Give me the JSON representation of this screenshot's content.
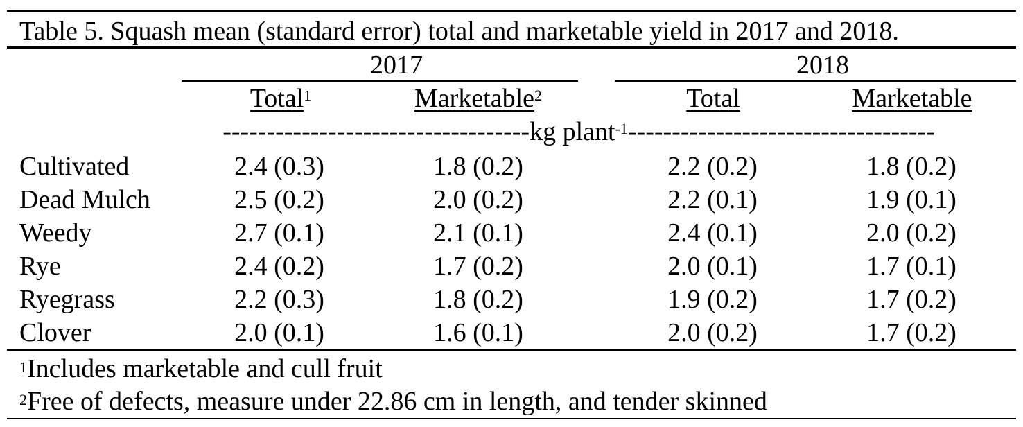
{
  "title": "Table 5. Squash mean (standard error) total and marketable yield in 2017 and 2018.",
  "years": [
    "2017",
    "2018"
  ],
  "columns": [
    {
      "label": "Total",
      "sup": "1"
    },
    {
      "label": "Marketable",
      "sup": "2"
    },
    {
      "label": "Total",
      "sup": ""
    },
    {
      "label": "Marketable",
      "sup": ""
    }
  ],
  "unit": {
    "left_dashes": "-----------------------------------",
    "label": "kg plant",
    "sup": "-1",
    "right_dashes": "-----------------------------------"
  },
  "rows": [
    {
      "name": "Cultivated",
      "values": [
        "2.4 (0.3)",
        "1.8 (0.2)",
        "2.2 (0.2)",
        "1.8 (0.2)"
      ]
    },
    {
      "name": "Dead Mulch",
      "values": [
        "2.5 (0.2)",
        "2.0 (0.2)",
        "2.2 (0.1)",
        "1.9 (0.1)"
      ]
    },
    {
      "name": "Weedy",
      "values": [
        "2.7 (0.1)",
        "2.1 (0.1)",
        "2.4 (0.1)",
        "2.0 (0.2)"
      ]
    },
    {
      "name": "Rye",
      "values": [
        "2.4 (0.2)",
        "1.7 (0.2)",
        "2.0 (0.1)",
        "1.7 (0.1)"
      ]
    },
    {
      "name": "Ryegrass",
      "values": [
        "2.2 (0.3)",
        "1.8 (0.2)",
        "1.9 (0.2)",
        "1.7 (0.2)"
      ]
    },
    {
      "name": "Clover",
      "values": [
        "2.0 (0.1)",
        "1.6 (0.1)",
        "2.0 (0.2)",
        "1.7 (0.2)"
      ]
    }
  ],
  "footnotes": [
    {
      "mark": "1",
      "text": "Includes marketable and cull fruit"
    },
    {
      "mark": "2",
      "text": "Free of defects, measure under 22.86 cm in length, and tender skinned"
    }
  ]
}
